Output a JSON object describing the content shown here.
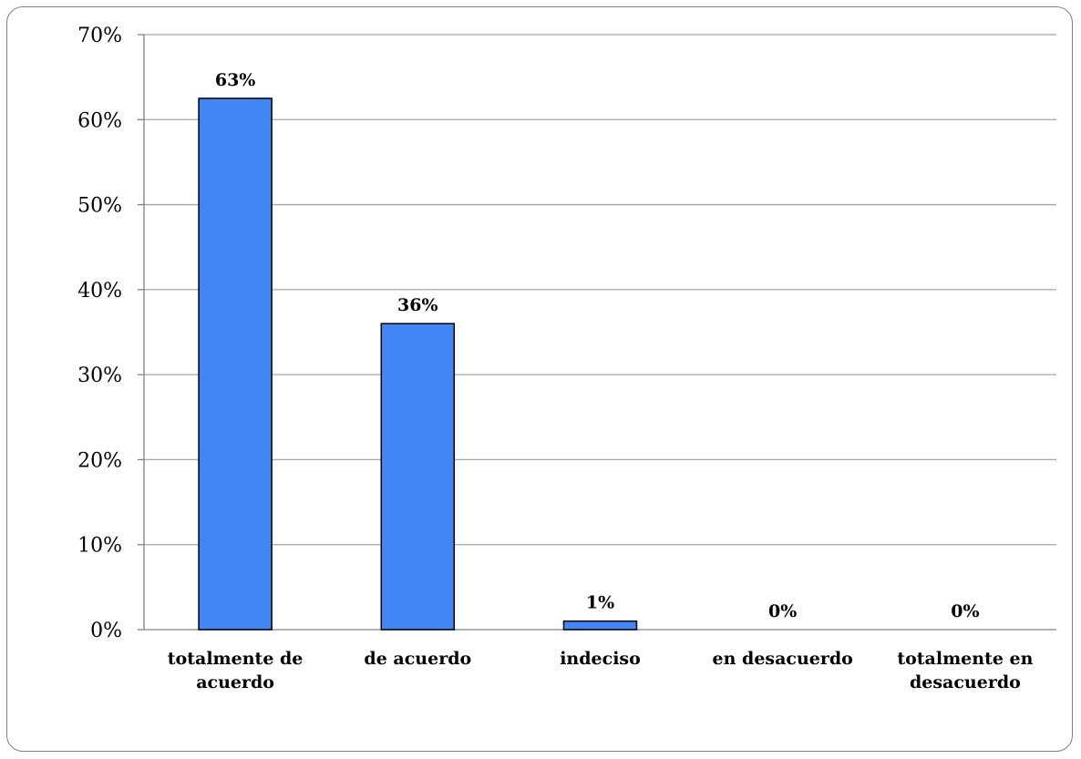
{
  "chart_data": {
    "type": "bar",
    "title": "",
    "xlabel": "",
    "ylabel": "",
    "categories": [
      "totalmente de acuerdo",
      "de acuerdo",
      "indeciso",
      "en desacuerdo",
      "totalmente en desacuerdo"
    ],
    "category_lines": [
      [
        "totalmente de",
        "acuerdo"
      ],
      [
        "de acuerdo"
      ],
      [
        "indeciso"
      ],
      [
        "en desacuerdo"
      ],
      [
        "totalmente en",
        "desacuerdo"
      ]
    ],
    "values": [
      62.5,
      36,
      1,
      0,
      0
    ],
    "data_labels": [
      "63%",
      "36%",
      "1%",
      "0%",
      "0%"
    ],
    "ylim": [
      0,
      70
    ],
    "yticks": [
      0,
      10,
      20,
      30,
      40,
      50,
      60,
      70
    ],
    "ytick_labels": [
      "0%",
      "10%",
      "20%",
      "30%",
      "40%",
      "50%",
      "60%",
      "70%"
    ],
    "grid": true,
    "legend": "none",
    "bar_color": "#4285f4",
    "bar_stroke": "#000000",
    "grid_color": "#a6a6a6"
  }
}
